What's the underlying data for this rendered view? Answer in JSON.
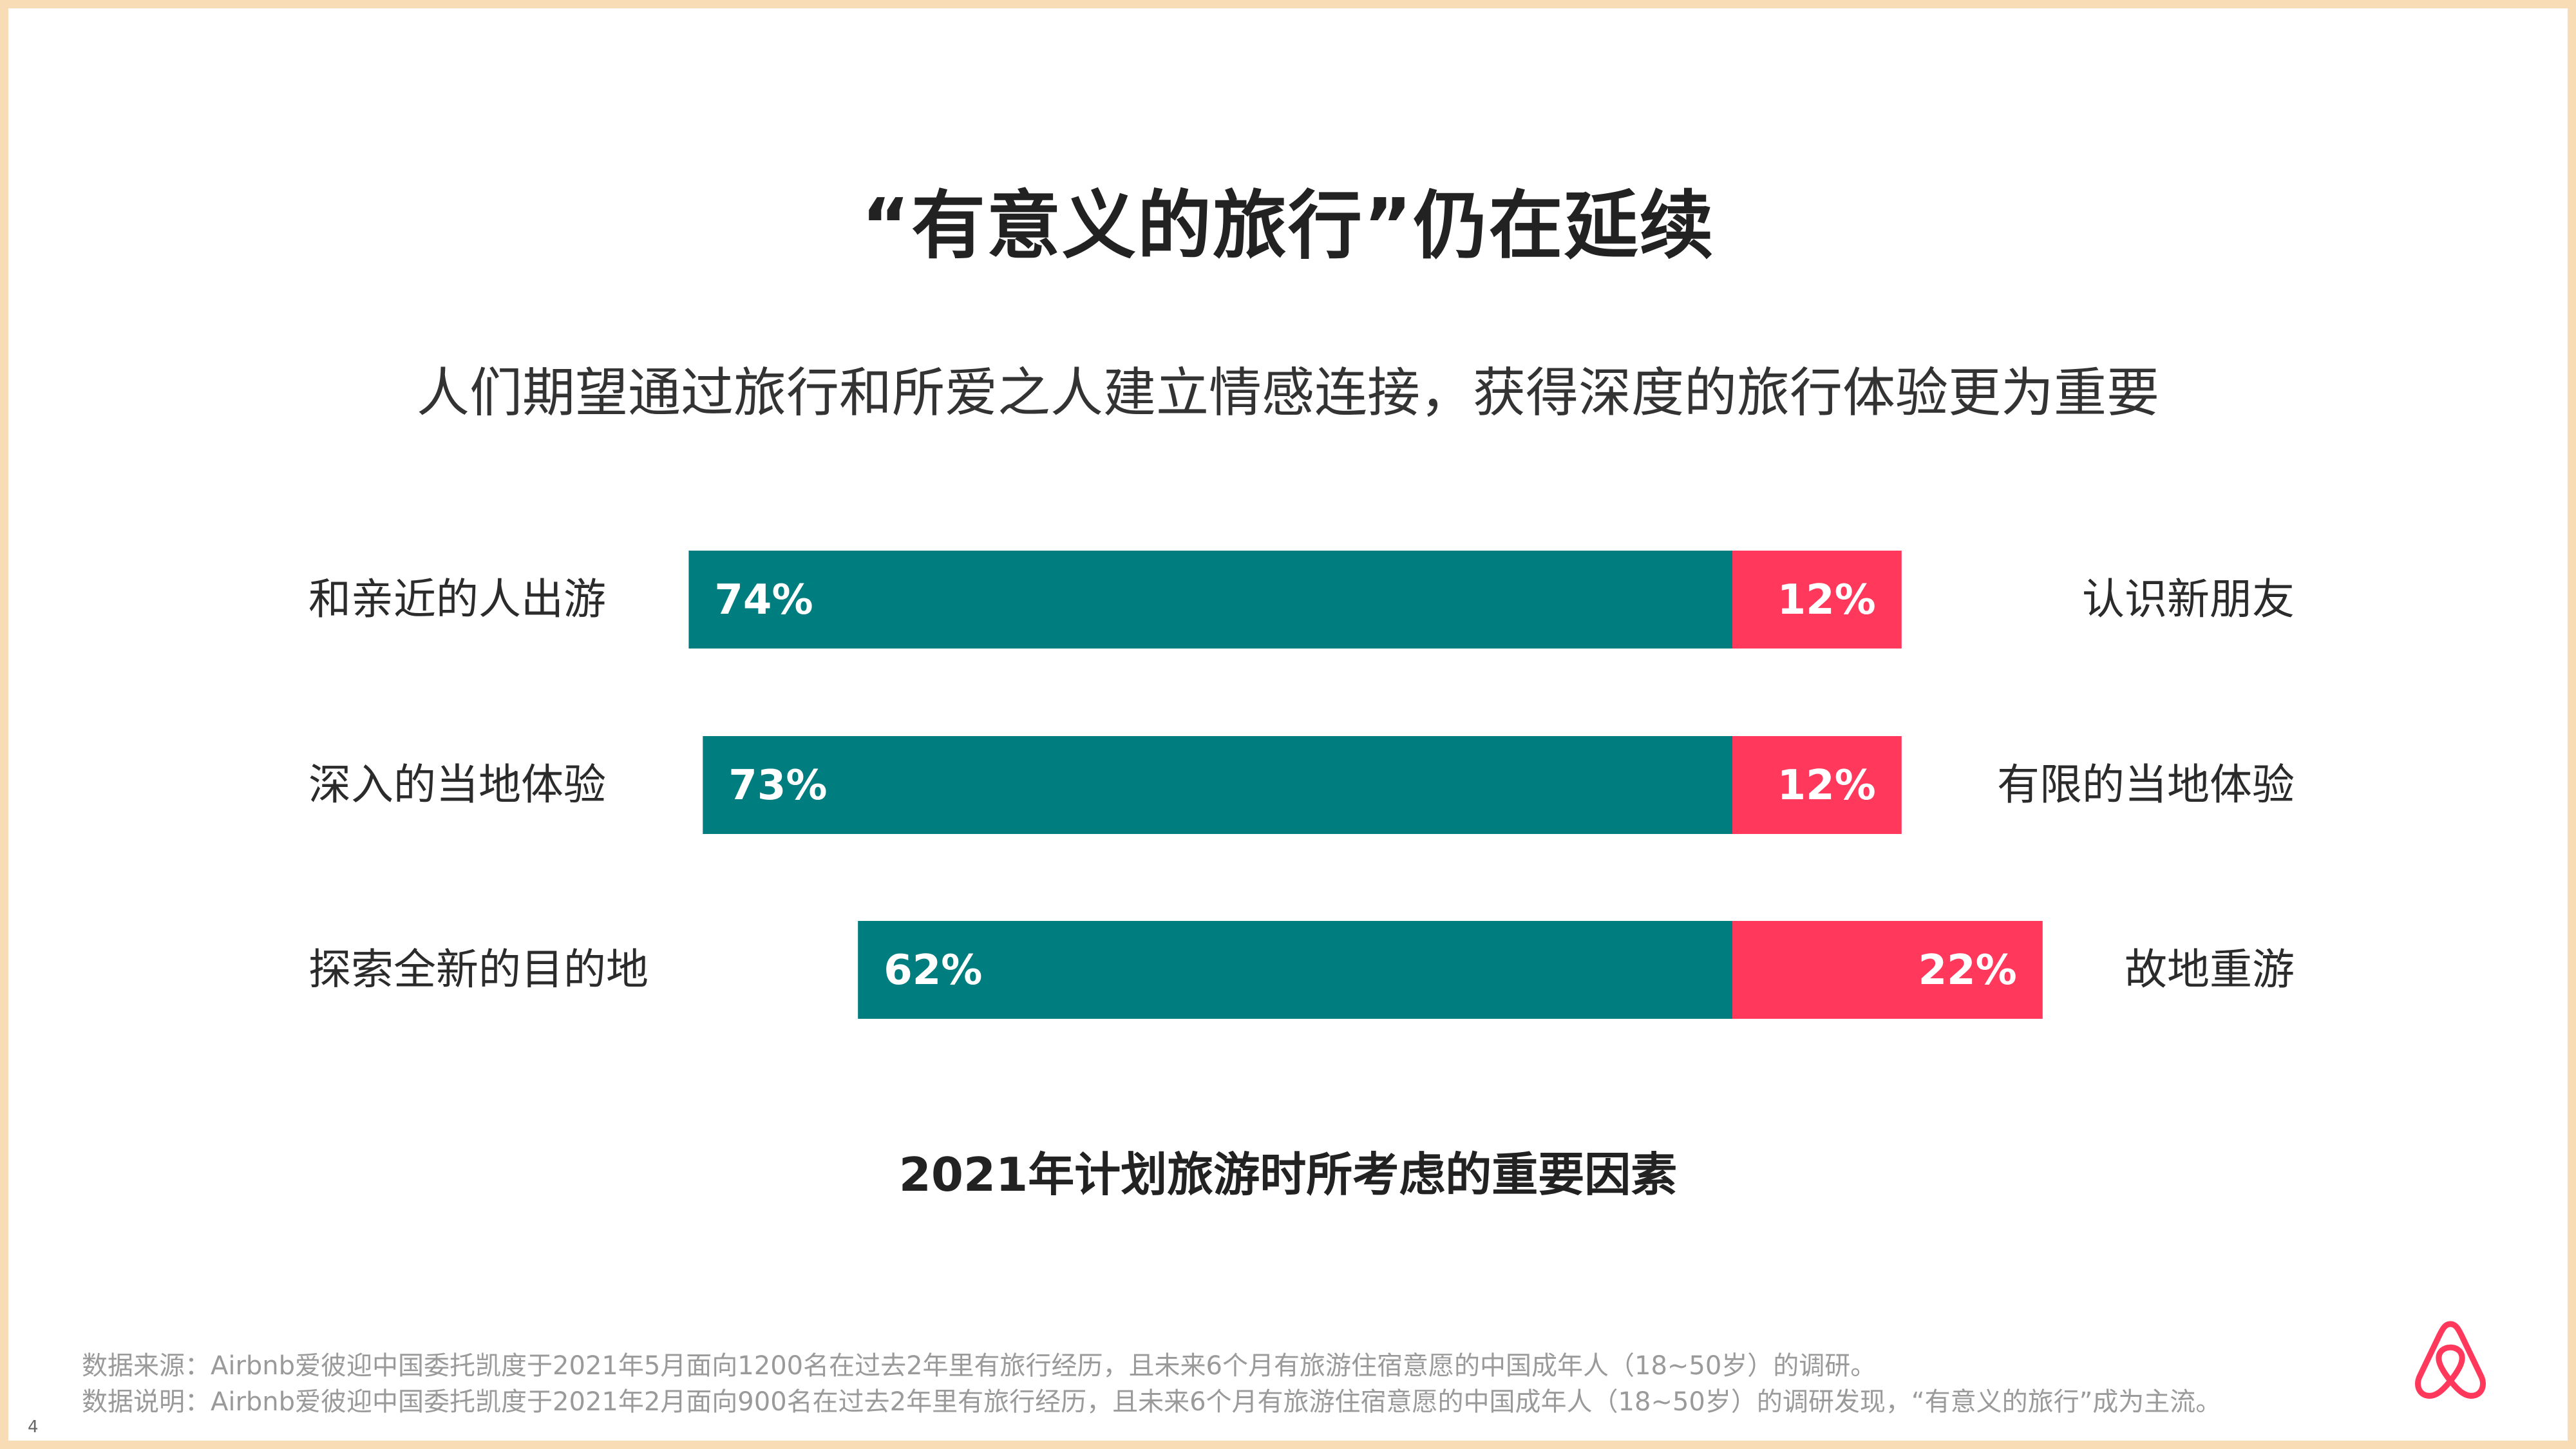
{
  "title": "“有意义的旅行”仍在延续",
  "subtitle": "人们期望通过旅行和所爱之人建立情感连接，获得深度的旅行体验更为重要",
  "chart_data": {
    "type": "bar",
    "orientation": "horizontal-diverging",
    "title": "2021年计划旅游时所考虑的重要因素",
    "categories_left": [
      "和亲近的人出游",
      "深入的当地体验",
      "探索全新的目的地"
    ],
    "categories_right": [
      "认识新朋友",
      "有限的当地体验",
      "故地重游"
    ],
    "series": [
      {
        "values": [
          74,
          73,
          62
        ],
        "labels": [
          "74%",
          "73%",
          "62%"
        ]
      },
      {
        "values": [
          12,
          12,
          22
        ],
        "labels": [
          "12%",
          "12%",
          "22%"
        ]
      }
    ],
    "colors": [
      "#007d7e",
      "#ff385c"
    ],
    "unit": "%"
  },
  "footnotes": {
    "source": "数据来源：Airbnb爱彼迎中国委托凯度于2021年5月面向1200名在过去2年里有旅行经历，且未来6个月有旅游住宿意愿的中国成年人（18~50岁）的调研。",
    "note": "数据说明：Airbnb爱彼迎中国委托凯度于2021年2月面向900名在过去2年里有旅行经历，且未来6个月有旅游住宿意愿的中国成年人（18~50岁）的调研发现，“有意义的旅行”成为主流。"
  },
  "page_number": "4",
  "logo": {
    "name": "airbnb-logo-icon",
    "color": "#ff385c"
  }
}
